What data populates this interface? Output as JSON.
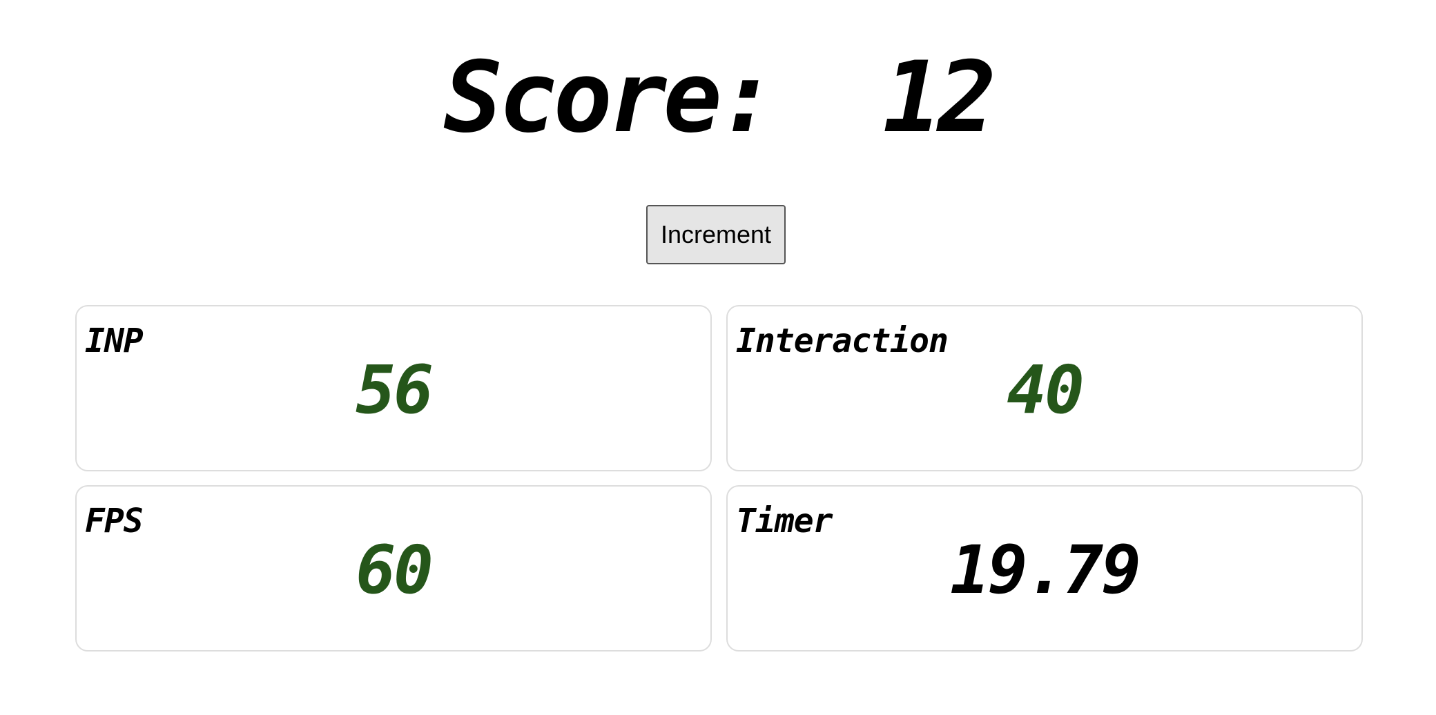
{
  "score": {
    "label": "Score:",
    "value": "12"
  },
  "increment_button": {
    "label": "Increment"
  },
  "metrics": [
    {
      "label": "INP",
      "value": "56",
      "color": "#25561a"
    },
    {
      "label": "Interaction",
      "value": "40",
      "color": "#25561a"
    },
    {
      "label": "FPS",
      "value": "60",
      "color": "#25561a"
    },
    {
      "label": "Timer",
      "value": "19.79",
      "color": "#000000"
    }
  ]
}
